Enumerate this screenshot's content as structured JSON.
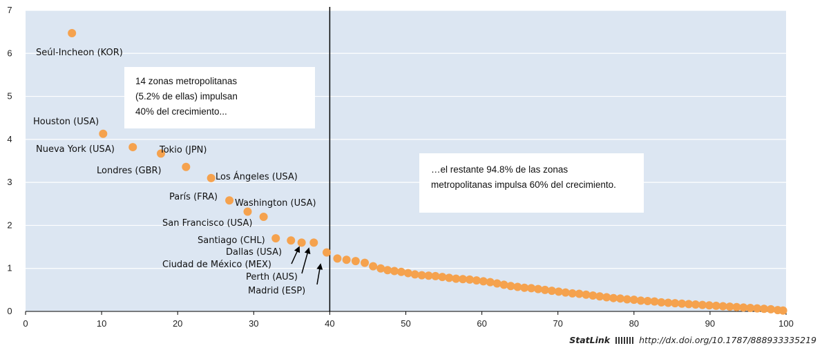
{
  "chart_data": {
    "type": "scatter",
    "xlim": [
      0,
      100
    ],
    "ylim": [
      0,
      7
    ],
    "x_ticks": [
      "0",
      "10",
      "20",
      "30",
      "40",
      "50",
      "60",
      "70",
      "80",
      "90",
      "100"
    ],
    "y_ticks": [
      "0",
      "1",
      "2",
      "3",
      "4",
      "5",
      "6",
      "7"
    ],
    "grid": "horizontal",
    "marker_color": "#F5A24E",
    "divider_x": 40,
    "labeled_points": [
      {
        "label": "Seúl-Incheon (KOR)",
        "x": 6.1,
        "y": 6.47
      },
      {
        "label": "Houston (USA)",
        "x": 10.2,
        "y": 4.13
      },
      {
        "label": "Nueva York (USA)",
        "x": 14.1,
        "y": 3.82
      },
      {
        "label": "Tokio (JPN)",
        "x": 17.8,
        "y": 3.67
      },
      {
        "label": "Londres (GBR)",
        "x": 21.1,
        "y": 3.36
      },
      {
        "label": "Los Ángeles (USA)",
        "x": 24.4,
        "y": 3.1
      },
      {
        "label": "París (FRA)",
        "x": 26.8,
        "y": 2.58
      },
      {
        "label": "Washington (USA)",
        "x": 29.2,
        "y": 2.32
      },
      {
        "label": "San Francisco (USA)",
        "x": 31.3,
        "y": 2.2
      },
      {
        "label": "Santiago (CHL)",
        "x": 32.9,
        "y": 1.7
      },
      {
        "label": "Dallas (USA)",
        "x": 34.9,
        "y": 1.65
      },
      {
        "label": "Ciudad de México (MEX)",
        "x": 36.3,
        "y": 1.6
      },
      {
        "label": "Perth (AUS)",
        "x": 37.9,
        "y": 1.6
      },
      {
        "label": "Madrid (ESP)",
        "x": 39.6,
        "y": 1.37
      }
    ],
    "rest_series": [
      [
        41,
        1.23
      ],
      [
        42.2,
        1.2
      ],
      [
        43.4,
        1.17
      ],
      [
        44.6,
        1.13
      ],
      [
        45.7,
        1.05
      ],
      [
        46.7,
        1.0
      ],
      [
        47.6,
        0.96
      ],
      [
        48.5,
        0.94
      ],
      [
        49.4,
        0.92
      ],
      [
        50.3,
        0.89
      ],
      [
        51.2,
        0.86
      ],
      [
        52.1,
        0.84
      ],
      [
        53,
        0.83
      ],
      [
        53.9,
        0.82
      ],
      [
        54.8,
        0.8
      ],
      [
        55.7,
        0.78
      ],
      [
        56.6,
        0.76
      ],
      [
        57.5,
        0.75
      ],
      [
        58.4,
        0.74
      ],
      [
        59.3,
        0.72
      ],
      [
        60.2,
        0.7
      ],
      [
        61.1,
        0.68
      ],
      [
        62,
        0.65
      ],
      [
        62.9,
        0.62
      ],
      [
        63.8,
        0.59
      ],
      [
        64.7,
        0.57
      ],
      [
        65.6,
        0.55
      ],
      [
        66.5,
        0.54
      ],
      [
        67.4,
        0.52
      ],
      [
        68.3,
        0.5
      ],
      [
        69.2,
        0.48
      ],
      [
        70.1,
        0.46
      ],
      [
        71,
        0.44
      ],
      [
        71.9,
        0.42
      ],
      [
        72.8,
        0.41
      ],
      [
        73.7,
        0.39
      ],
      [
        74.6,
        0.37
      ],
      [
        75.5,
        0.35
      ],
      [
        76.4,
        0.33
      ],
      [
        77.3,
        0.31
      ],
      [
        78.2,
        0.3
      ],
      [
        79.1,
        0.28
      ],
      [
        80,
        0.27
      ],
      [
        80.9,
        0.25
      ],
      [
        81.8,
        0.24
      ],
      [
        82.7,
        0.23
      ],
      [
        83.6,
        0.21
      ],
      [
        84.5,
        0.2
      ],
      [
        85.4,
        0.19
      ],
      [
        86.3,
        0.18
      ],
      [
        87.2,
        0.17
      ],
      [
        88.1,
        0.16
      ],
      [
        89,
        0.15
      ],
      [
        89.9,
        0.14
      ],
      [
        90.8,
        0.13
      ],
      [
        91.7,
        0.12
      ],
      [
        92.6,
        0.11
      ],
      [
        93.5,
        0.1
      ],
      [
        94.4,
        0.09
      ],
      [
        95.3,
        0.08
      ],
      [
        96.2,
        0.07
      ],
      [
        97.1,
        0.06
      ],
      [
        98,
        0.05
      ],
      [
        98.9,
        0.03
      ],
      [
        99.6,
        0.02
      ]
    ],
    "annotations": [
      {
        "lines": [
          "14 zonas metropolitanas",
          "(5.2% de ellas) impulsan",
          "40% del crecimiento..."
        ]
      },
      {
        "lines": [
          "…el restante 94.8% de las zonas",
          "metropolitanas impulsa 60% del crecimiento."
        ]
      }
    ]
  },
  "footer": {
    "brand": "StatLink",
    "url": "http://dx.doi.org/10.1787/888933335219"
  }
}
